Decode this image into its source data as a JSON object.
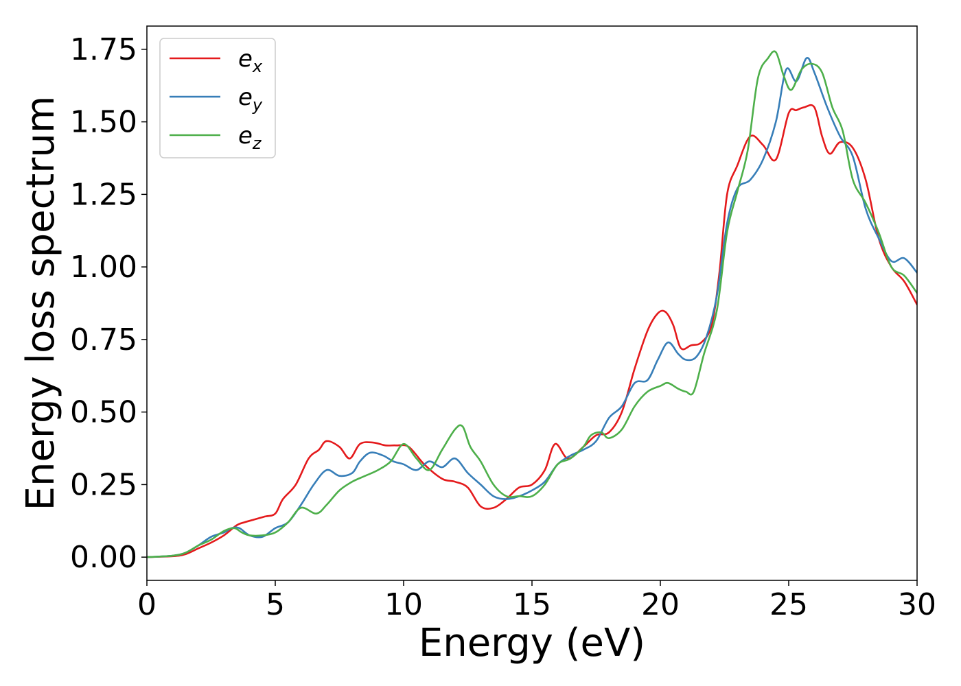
{
  "chart_data": {
    "type": "line",
    "title": "",
    "xlabel": "Energy (eV)",
    "ylabel": "Energy loss spectrum",
    "xlim": [
      0,
      30
    ],
    "ylim": [
      -0.08,
      1.83
    ],
    "xticks": [
      0,
      5,
      10,
      15,
      20,
      25,
      30
    ],
    "xtick_labels": [
      "0",
      "5",
      "10",
      "15",
      "20",
      "25",
      "30"
    ],
    "yticks": [
      0,
      0.25,
      0.5,
      0.75,
      1.0,
      1.25,
      1.5,
      1.75
    ],
    "ytick_labels": [
      "0.00",
      "0.25",
      "0.50",
      "0.75",
      "1.00",
      "1.25",
      "1.50",
      "1.75"
    ],
    "grid": false,
    "legend_position": "top-left",
    "series": [
      {
        "name": "e_x",
        "label_base": "e",
        "label_sub": "x",
        "color": "#e41a1c",
        "x": [
          0,
          1,
          1.5,
          2,
          2.5,
          3,
          3.5,
          3.8,
          4.2,
          4.6,
          5,
          5.3,
          5.8,
          6.3,
          6.7,
          7,
          7.5,
          7.9,
          8.3,
          8.8,
          9.3,
          9.7,
          10.2,
          10.8,
          11.5,
          12,
          12.5,
          13,
          13.5,
          14,
          14.5,
          15,
          15.5,
          15.9,
          16.4,
          17,
          17.5,
          18,
          18.5,
          19,
          19.5,
          19.9,
          20.2,
          20.5,
          20.8,
          21.2,
          21.6,
          22,
          22.3,
          22.6,
          23,
          23.5,
          24,
          24.5,
          25,
          25.3,
          25.6,
          26,
          26.3,
          26.6,
          27,
          27.5,
          28,
          28.5,
          29,
          29.5,
          30
        ],
        "y": [
          0,
          0.003,
          0.01,
          0.03,
          0.05,
          0.075,
          0.11,
          0.12,
          0.13,
          0.14,
          0.15,
          0.2,
          0.25,
          0.34,
          0.37,
          0.4,
          0.38,
          0.34,
          0.39,
          0.395,
          0.385,
          0.385,
          0.38,
          0.32,
          0.27,
          0.26,
          0.24,
          0.175,
          0.17,
          0.2,
          0.24,
          0.25,
          0.3,
          0.39,
          0.34,
          0.38,
          0.42,
          0.43,
          0.5,
          0.65,
          0.78,
          0.84,
          0.845,
          0.8,
          0.72,
          0.73,
          0.74,
          0.8,
          0.98,
          1.25,
          1.35,
          1.45,
          1.42,
          1.37,
          1.53,
          1.54,
          1.55,
          1.55,
          1.45,
          1.39,
          1.43,
          1.41,
          1.3,
          1.1,
          1.0,
          0.95,
          0.87
        ]
      },
      {
        "name": "e_y",
        "label_base": "e",
        "label_sub": "y",
        "color": "#377eb8",
        "x": [
          0,
          1,
          1.5,
          2,
          2.5,
          3,
          3.3,
          3.6,
          4,
          4.5,
          5,
          5.5,
          6,
          6.5,
          7,
          7.5,
          8,
          8.3,
          8.7,
          9.2,
          9.6,
          10,
          10.5,
          11,
          11.5,
          12,
          12.5,
          13,
          13.5,
          14,
          14.5,
          15,
          15.5,
          16,
          16.5,
          17,
          17.5,
          18,
          18.5,
          19,
          19.5,
          19.9,
          20.3,
          20.7,
          21,
          21.4,
          21.8,
          22.2,
          22.6,
          23,
          23.5,
          24,
          24.5,
          24.9,
          25.3,
          25.7,
          26,
          26.5,
          27,
          27.5,
          28,
          28.5,
          29,
          29.5,
          30
        ],
        "y": [
          0,
          0.005,
          0.015,
          0.04,
          0.07,
          0.085,
          0.1,
          0.1,
          0.075,
          0.07,
          0.1,
          0.12,
          0.18,
          0.25,
          0.3,
          0.28,
          0.29,
          0.33,
          0.36,
          0.35,
          0.33,
          0.32,
          0.3,
          0.33,
          0.31,
          0.34,
          0.29,
          0.25,
          0.21,
          0.2,
          0.21,
          0.23,
          0.26,
          0.32,
          0.35,
          0.37,
          0.4,
          0.48,
          0.52,
          0.6,
          0.61,
          0.68,
          0.74,
          0.7,
          0.68,
          0.69,
          0.76,
          0.9,
          1.15,
          1.27,
          1.3,
          1.37,
          1.5,
          1.68,
          1.64,
          1.72,
          1.67,
          1.55,
          1.45,
          1.38,
          1.2,
          1.1,
          1.02,
          1.03,
          0.98
        ]
      },
      {
        "name": "e_z",
        "label_base": "e",
        "label_sub": "z",
        "color": "#4daf4a",
        "x": [
          0,
          1,
          1.5,
          2,
          2.5,
          3,
          3.4,
          3.7,
          4,
          4.5,
          5,
          5.5,
          6,
          6.6,
          7,
          7.5,
          8,
          8.5,
          9,
          9.5,
          10,
          10.5,
          11,
          11.5,
          12,
          12.3,
          12.6,
          13,
          13.5,
          14,
          14.5,
          15,
          15.5,
          16,
          16.5,
          17,
          17.3,
          17.7,
          18,
          18.5,
          19,
          19.5,
          20,
          20.3,
          20.7,
          21,
          21.3,
          21.7,
          22.2,
          22.6,
          23,
          23.4,
          23.8,
          24.2,
          24.5,
          24.8,
          25.1,
          25.5,
          25.9,
          26.3,
          26.7,
          27.1,
          27.5,
          28,
          28.5,
          29,
          29.5,
          30
        ],
        "y": [
          0,
          0.005,
          0.015,
          0.04,
          0.06,
          0.09,
          0.1,
          0.085,
          0.075,
          0.075,
          0.085,
          0.12,
          0.17,
          0.15,
          0.18,
          0.23,
          0.26,
          0.28,
          0.3,
          0.33,
          0.39,
          0.34,
          0.3,
          0.37,
          0.44,
          0.45,
          0.38,
          0.33,
          0.25,
          0.21,
          0.21,
          0.21,
          0.25,
          0.32,
          0.34,
          0.38,
          0.42,
          0.43,
          0.41,
          0.44,
          0.52,
          0.57,
          0.59,
          0.6,
          0.58,
          0.57,
          0.57,
          0.7,
          0.85,
          1.12,
          1.26,
          1.4,
          1.65,
          1.72,
          1.74,
          1.66,
          1.61,
          1.68,
          1.7,
          1.67,
          1.55,
          1.47,
          1.3,
          1.22,
          1.12,
          1.0,
          0.97,
          0.91
        ]
      }
    ]
  }
}
